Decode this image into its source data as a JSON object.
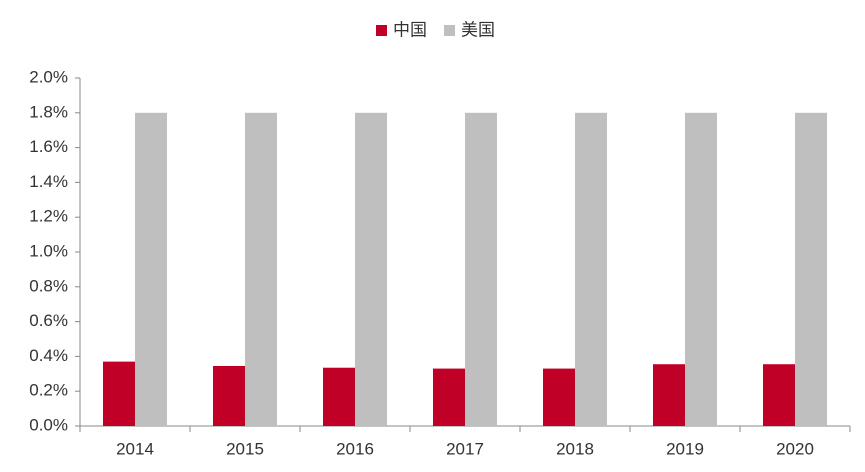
{
  "chart_data": {
    "type": "bar",
    "categories": [
      "2014",
      "2015",
      "2016",
      "2017",
      "2018",
      "2019",
      "2020"
    ],
    "series": [
      {
        "name": "中国",
        "color": "#c00026",
        "values": [
          0.37,
          0.345,
          0.335,
          0.33,
          0.33,
          0.355,
          0.355
        ]
      },
      {
        "name": "美国",
        "color": "#bfbfbf",
        "values": [
          1.8,
          1.8,
          1.8,
          1.8,
          1.8,
          1.8,
          1.8
        ]
      }
    ],
    "ylim": [
      0,
      2.0
    ],
    "yticks": [
      {
        "value": 0,
        "label": "0.0%"
      },
      {
        "value": 0.2,
        "label": "0.2%"
      },
      {
        "value": 0.4,
        "label": "0.4%"
      },
      {
        "value": 0.6,
        "label": "0.6%"
      },
      {
        "value": 0.8,
        "label": "0.8%"
      },
      {
        "value": 1.0,
        "label": "1.0%"
      },
      {
        "value": 1.2,
        "label": "1.2%"
      },
      {
        "value": 1.4,
        "label": "1.4%"
      },
      {
        "value": 1.6,
        "label": "1.6%"
      },
      {
        "value": 1.8,
        "label": "1.8%"
      },
      {
        "value": 2.0,
        "label": "2.0%"
      }
    ],
    "grid": false,
    "legend": "top"
  }
}
